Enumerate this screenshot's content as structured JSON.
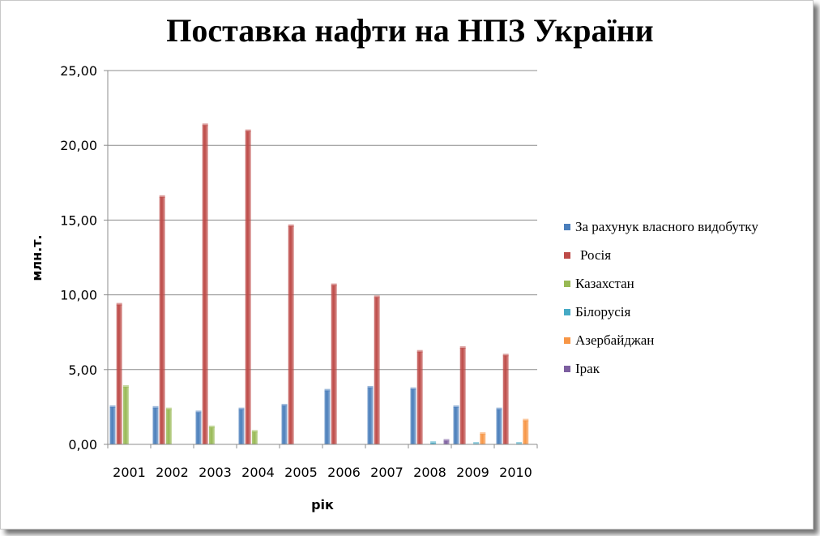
{
  "chart_data": {
    "type": "bar",
    "title": "Поставка нафти на НПЗ України",
    "xlabel": "рік",
    "ylabel": "млн.т.",
    "ylim": [
      0,
      25
    ],
    "yticks": [
      "0,00",
      "5,00",
      "10,00",
      "15,00",
      "20,00",
      "25,00"
    ],
    "grid": true,
    "legend_position": "right",
    "categories": [
      "2001",
      "2002",
      "2003",
      "2004",
      "2005",
      "2006",
      "2007",
      "2008",
      "2009",
      "2010"
    ],
    "series": [
      {
        "name": "За рахунук власного видобутку",
        "color": "#4a7ebb",
        "values": [
          2.5,
          2.45,
          2.15,
          2.35,
          2.6,
          3.6,
          3.8,
          3.7,
          2.5,
          2.35
        ]
      },
      {
        "name": "Росія",
        "color": "#be4b48",
        "values": [
          9.35,
          16.55,
          21.35,
          20.95,
          14.6,
          10.65,
          9.85,
          6.2,
          6.45,
          5.95
        ]
      },
      {
        "name": "Казахстан",
        "color": "#98b954",
        "values": [
          3.85,
          2.35,
          1.15,
          0.85,
          0,
          0,
          0,
          0,
          0,
          0
        ]
      },
      {
        "name": "Білорусія",
        "color": "#46aac5",
        "values": [
          0,
          0,
          0,
          0,
          0,
          0,
          0,
          0.1,
          0.05,
          0.05
        ]
      },
      {
        "name": "Азербайджан",
        "color": "#f79646",
        "values": [
          0,
          0,
          0,
          0,
          0,
          0,
          0,
          0,
          0.7,
          1.6
        ]
      },
      {
        "name": "Ірак",
        "color": "#7d5fa0",
        "values": [
          0,
          0,
          0,
          0,
          0,
          0,
          0,
          0.25,
          0,
          0
        ]
      }
    ]
  }
}
